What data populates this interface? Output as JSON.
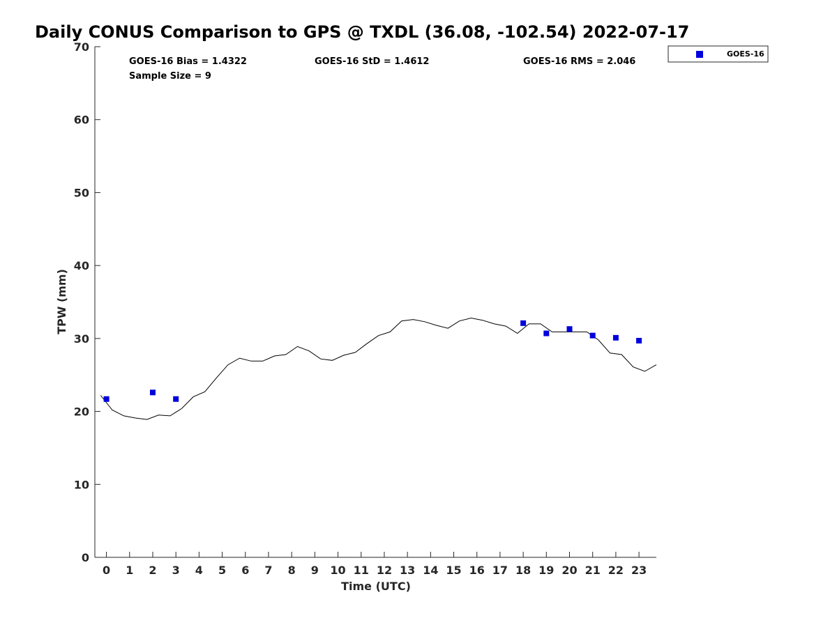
{
  "chart_data": {
    "type": "scatter",
    "title": "Daily CONUS Comparison to GPS @ TXDL (36.08, -102.54) 2022-07-17",
    "xlabel": "Time (UTC)",
    "ylabel": "TPW (mm)",
    "xlim": [
      -0.5,
      23.75
    ],
    "ylim": [
      0,
      70
    ],
    "xticks": [
      0,
      1,
      2,
      3,
      4,
      5,
      6,
      7,
      8,
      9,
      10,
      11,
      12,
      13,
      14,
      15,
      16,
      17,
      18,
      19,
      20,
      21,
      22,
      23
    ],
    "yticks": [
      0,
      10,
      20,
      30,
      40,
      50,
      60,
      70
    ],
    "grid": false,
    "legend": {
      "position": "top-right outside",
      "entries": [
        "GOES-16"
      ]
    },
    "stats": {
      "bias": "GOES-16 Bias = 1.4322",
      "std": "GOES-16 StD = 1.4612",
      "rms": "GOES-16 RMS = 2.046",
      "sample": "Sample Size = 9"
    },
    "series": [
      {
        "name": "GOES-16",
        "kind": "scatter",
        "color": "#0000dd",
        "x": [
          0,
          2,
          3,
          18,
          19,
          20,
          21,
          22,
          23
        ],
        "y": [
          21.7,
          22.6,
          21.7,
          32.1,
          30.7,
          31.3,
          30.4,
          30.1,
          29.7
        ]
      },
      {
        "kind": "line",
        "color": "#000000",
        "x": [
          -0.25,
          0.25,
          0.75,
          1.25,
          1.75,
          2.25,
          2.75,
          3.25,
          3.75,
          4.25,
          4.75,
          5.25,
          5.75,
          6.25,
          6.75,
          7.25,
          7.75,
          8.25,
          8.75,
          9.25,
          9.75,
          10.25,
          10.75,
          11.25,
          11.75,
          12.25,
          12.75,
          13.25,
          13.75,
          14.25,
          14.75,
          15.25,
          15.75,
          16.25,
          16.75,
          17.25,
          17.75,
          18.25,
          18.75,
          19.25,
          19.75,
          20.25,
          20.75,
          21.25,
          21.75,
          22.25,
          22.75,
          23.25,
          23.75
        ],
        "y": [
          22.2,
          20.2,
          19.4,
          19.1,
          18.9,
          19.5,
          19.4,
          20.4,
          22.0,
          22.7,
          24.6,
          26.4,
          27.3,
          26.9,
          26.9,
          27.6,
          27.8,
          28.9,
          28.3,
          27.2,
          27.0,
          27.7,
          28.1,
          29.3,
          30.4,
          30.9,
          32.4,
          32.6,
          32.3,
          31.8,
          31.4,
          32.4,
          32.8,
          32.5,
          32.0,
          31.7,
          30.7,
          32.0,
          32.0,
          30.9,
          30.9,
          30.9,
          30.9,
          29.8,
          28.0,
          27.8,
          26.1,
          25.5,
          26.4
        ]
      }
    ]
  }
}
